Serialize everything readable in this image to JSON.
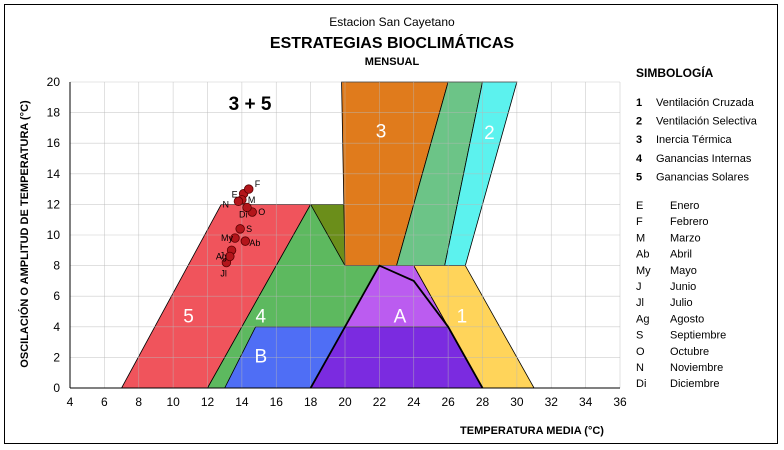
{
  "chart_data": {
    "type": "area",
    "supertitle": "Estacion San Cayetano",
    "title": "ESTRATEGIAS BIOCLIMÁTICAS",
    "subtitle": "MENSUAL",
    "xlabel": "TEMPERATURA   MEDIA   (°C)",
    "ylabel": "OSCILACIÓN   O   AMPLITUD   DE   TEMPERATURA   (°C)",
    "xlim": [
      4,
      36
    ],
    "ylim": [
      0,
      20
    ],
    "xticks": [
      "4",
      "6",
      "8",
      "10",
      "12",
      "14",
      "16",
      "18",
      "20",
      "22",
      "24",
      "26",
      "28",
      "30",
      "32",
      "34",
      "36"
    ],
    "yticks": [
      "0",
      "2",
      "4",
      "6",
      "8",
      "10",
      "12",
      "14",
      "16",
      "18",
      "20"
    ],
    "grid": true,
    "annotation": "3 + 5",
    "zones": [
      {
        "label": "5",
        "color": "#f0545c",
        "points": [
          [
            7,
            0
          ],
          [
            12.8,
            12
          ],
          [
            18,
            12
          ],
          [
            12,
            0
          ]
        ]
      },
      {
        "label": "4",
        "color": "#5db95f",
        "points": [
          [
            12,
            0
          ],
          [
            18,
            12
          ],
          [
            22,
            12
          ],
          [
            22,
            8
          ],
          [
            18,
            0
          ]
        ]
      },
      {
        "label": "",
        "color": "#6b8e1a",
        "points": [
          [
            18,
            12
          ],
          [
            22,
            12
          ],
          [
            22,
            8
          ],
          [
            20,
            8
          ]
        ]
      },
      {
        "label": "B",
        "color": "#4f6ef5",
        "points": [
          [
            13,
            0
          ],
          [
            14.8,
            4
          ],
          [
            26,
            4
          ],
          [
            28,
            0
          ]
        ]
      },
      {
        "label": "A",
        "color": "#bb5cf0",
        "points": [
          [
            18,
            0
          ],
          [
            22,
            8
          ],
          [
            24,
            8
          ],
          [
            26,
            4
          ],
          [
            28,
            0
          ]
        ]
      },
      {
        "label": "",
        "color": "#7b2be0",
        "points": [
          [
            18,
            0
          ],
          [
            20,
            4
          ],
          [
            26,
            4
          ],
          [
            28,
            0
          ]
        ]
      },
      {
        "label": "3",
        "color": "#e07b1c",
        "points": [
          [
            19.8,
            20
          ],
          [
            26,
            20
          ],
          [
            23,
            8
          ],
          [
            20,
            8
          ]
        ]
      },
      {
        "label": "",
        "color": "#6cc487",
        "points": [
          [
            26,
            20
          ],
          [
            28,
            20
          ],
          [
            25.8,
            8
          ],
          [
            23,
            8
          ]
        ]
      },
      {
        "label": "2",
        "color": "#5cf2ee",
        "points": [
          [
            28,
            20
          ],
          [
            30,
            20
          ],
          [
            27,
            8
          ],
          [
            25.8,
            8
          ]
        ]
      },
      {
        "label": "1",
        "color": "#ffd45a",
        "points": [
          [
            24,
            8
          ],
          [
            27,
            8
          ],
          [
            31,
            0
          ],
          [
            28,
            0
          ],
          [
            26,
            4
          ]
        ]
      }
    ],
    "boundary_line": [
      [
        18,
        0
      ],
      [
        22,
        8
      ],
      [
        24,
        7
      ],
      [
        26,
        4
      ],
      [
        28,
        0
      ]
    ],
    "series": [
      {
        "label": "E",
        "x": 14.1,
        "y": 12.7
      },
      {
        "label": "F",
        "x": 14.4,
        "y": 13.0
      },
      {
        "label": "M",
        "x": 14.0,
        "y": 12.3
      },
      {
        "label": "Ab",
        "x": 14.2,
        "y": 9.6
      },
      {
        "label": "My",
        "x": 13.6,
        "y": 9.8
      },
      {
        "label": "J",
        "x": 13.4,
        "y": 9.0
      },
      {
        "label": "Jl",
        "x": 13.1,
        "y": 8.2
      },
      {
        "label": "Ag",
        "x": 13.3,
        "y": 8.6
      },
      {
        "label": "S",
        "x": 13.9,
        "y": 10.4
      },
      {
        "label": "O",
        "x": 14.6,
        "y": 11.5
      },
      {
        "label": "N",
        "x": 13.8,
        "y": 12.2
      },
      {
        "label": "Di",
        "x": 14.3,
        "y": 11.8
      }
    ],
    "legend_title": "SIMBOLOGÍA",
    "legend": [
      {
        "key": "1",
        "text": "Ventilación Cruzada"
      },
      {
        "key": "2",
        "text": "Ventilación Selectiva"
      },
      {
        "key": "3",
        "text": "Inercia Térmica"
      },
      {
        "key": "4",
        "text": "Ganancias Internas"
      },
      {
        "key": "5",
        "text": "Ganancias Solares"
      }
    ],
    "months": [
      {
        "key": "E",
        "text": "Enero"
      },
      {
        "key": "F",
        "text": "Febrero"
      },
      {
        "key": "M",
        "text": "Marzo"
      },
      {
        "key": "Ab",
        "text": "Abril"
      },
      {
        "key": "My",
        "text": "Mayo"
      },
      {
        "key": "J",
        "text": "Junio"
      },
      {
        "key": "Jl",
        "text": "Julio"
      },
      {
        "key": "Ag",
        "text": "Agosto"
      },
      {
        "key": "S",
        "text": "Septiembre"
      },
      {
        "key": "O",
        "text": "Octubre"
      },
      {
        "key": "N",
        "text": "Noviembre"
      },
      {
        "key": "Di",
        "text": "Diciembre"
      }
    ]
  }
}
